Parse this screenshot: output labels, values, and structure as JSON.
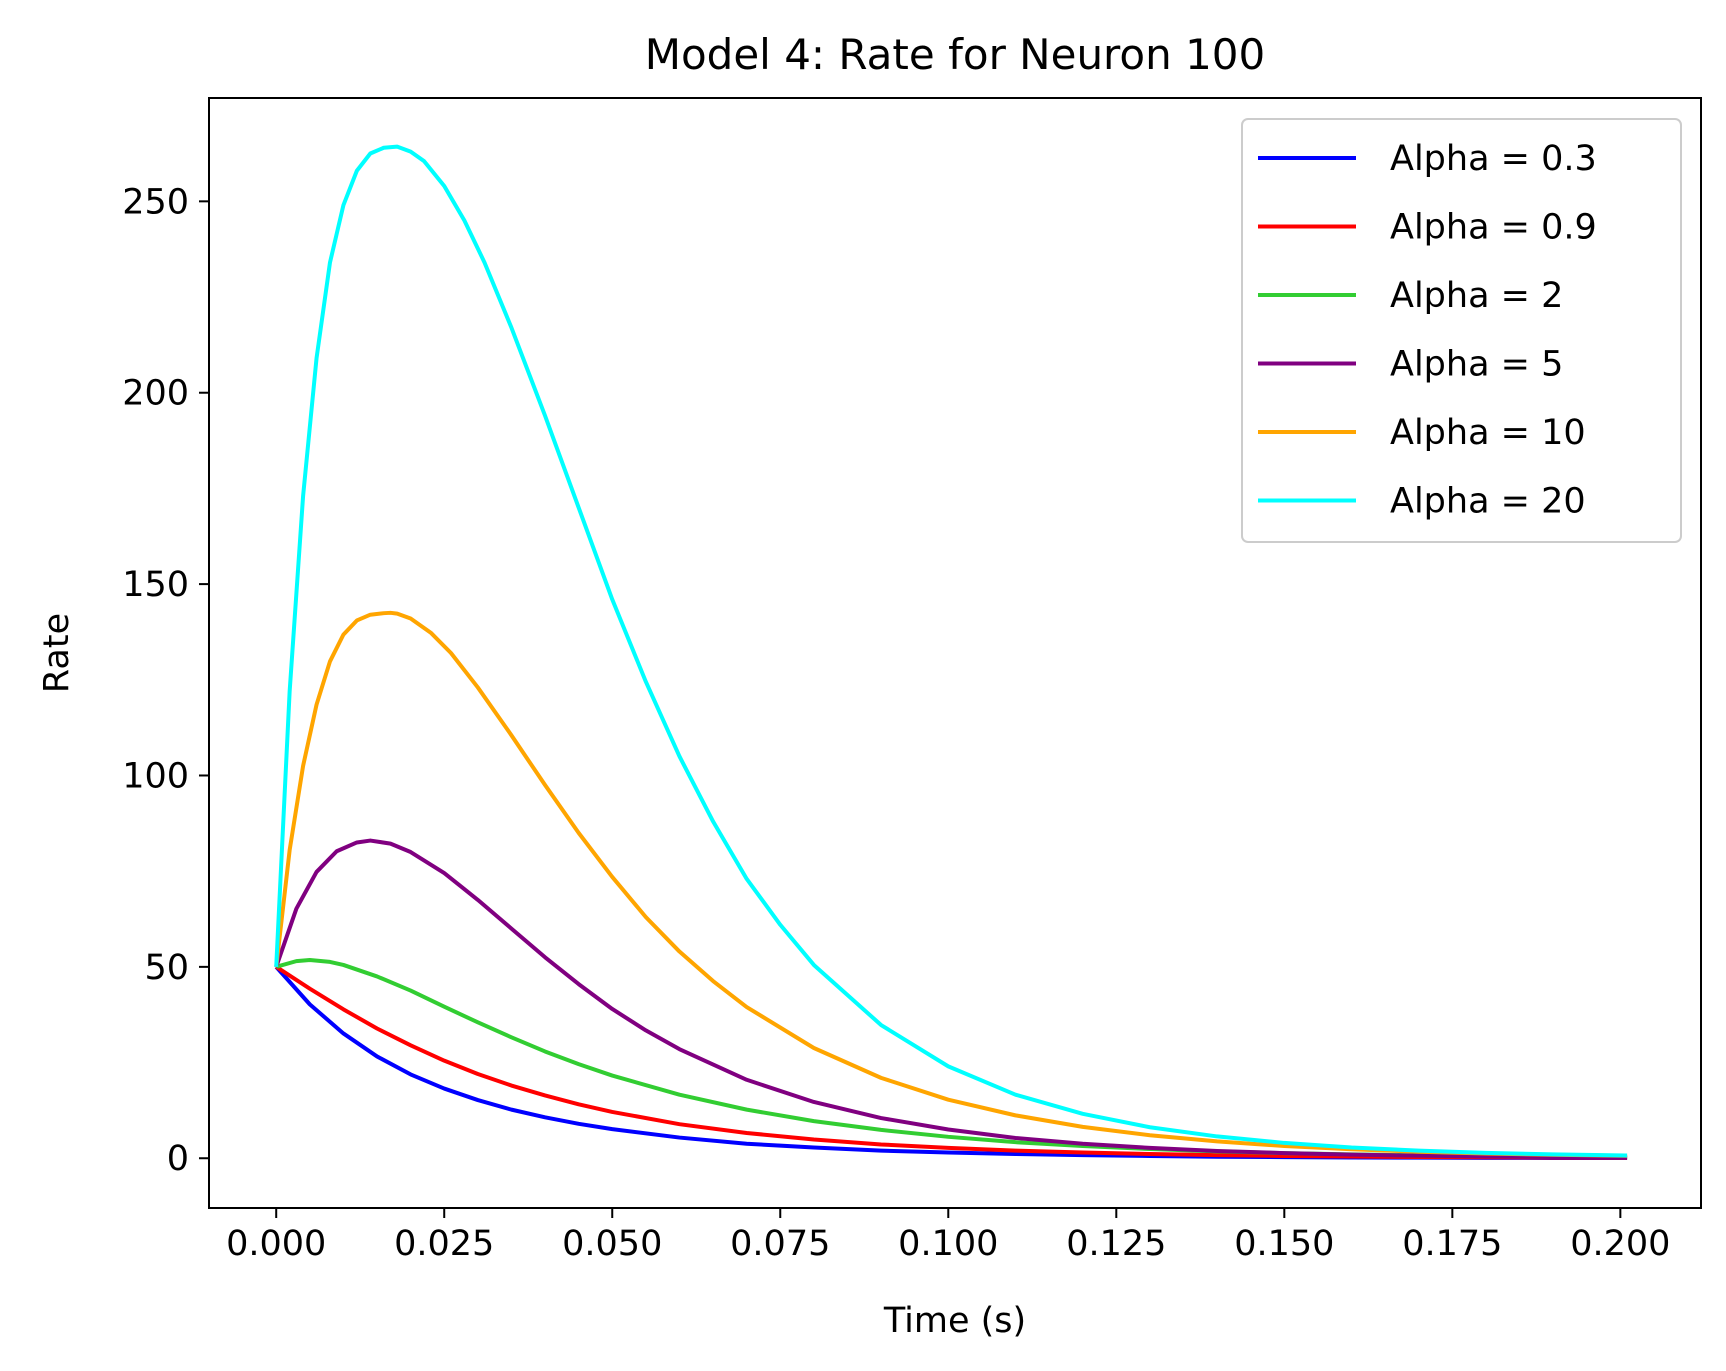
{
  "chart_data": {
    "type": "line",
    "title": "Model 4: Rate for Neuron 100",
    "xlabel": "Time (s)",
    "ylabel": "Rate",
    "xlim": [
      -0.01,
      0.212
    ],
    "ylim": [
      -13,
      277
    ],
    "xticks": [
      0.0,
      0.025,
      0.05,
      0.075,
      0.1,
      0.125,
      0.15,
      0.175,
      0.2
    ],
    "xtick_labels": [
      "0.000",
      "0.025",
      "0.050",
      "0.075",
      "0.100",
      "0.125",
      "0.150",
      "0.175",
      "0.200"
    ],
    "yticks": [
      0,
      50,
      100,
      150,
      200,
      250
    ],
    "ytick_labels": [
      "0",
      "50",
      "100",
      "150",
      "200",
      "250"
    ],
    "grid": false,
    "legend_position": "top-right",
    "series": [
      {
        "name": "Alpha = 0.3",
        "color": "#0000ff",
        "x": [
          0.0,
          0.005,
          0.01,
          0.015,
          0.02,
          0.025,
          0.03,
          0.035,
          0.04,
          0.045,
          0.05,
          0.06,
          0.07,
          0.08,
          0.09,
          0.1,
          0.11,
          0.12,
          0.13,
          0.14,
          0.15,
          0.16,
          0.17,
          0.18,
          0.19,
          0.201
        ],
        "y": [
          50,
          40.2,
          32.6,
          26.6,
          21.9,
          18.2,
          15.2,
          12.7,
          10.7,
          9.0,
          7.6,
          5.4,
          3.8,
          2.8,
          2.0,
          1.5,
          1.1,
          0.8,
          0.6,
          0.4,
          0.3,
          0.2,
          0.15,
          0.1,
          0.08,
          0.05
        ]
      },
      {
        "name": "Alpha = 0.9",
        "color": "#ff0000",
        "x": [
          0.0,
          0.005,
          0.01,
          0.015,
          0.02,
          0.025,
          0.03,
          0.035,
          0.04,
          0.045,
          0.05,
          0.06,
          0.07,
          0.08,
          0.09,
          0.1,
          0.11,
          0.12,
          0.13,
          0.14,
          0.15,
          0.16,
          0.17,
          0.18,
          0.19,
          0.201
        ],
        "y": [
          50,
          44.3,
          38.9,
          33.9,
          29.5,
          25.5,
          22.0,
          19.0,
          16.4,
          14.1,
          12.1,
          8.9,
          6.6,
          4.9,
          3.6,
          2.7,
          2.0,
          1.5,
          1.1,
          0.8,
          0.6,
          0.45,
          0.33,
          0.25,
          0.18,
          0.12
        ]
      },
      {
        "name": "Alpha = 2",
        "color": "#32cd32",
        "x": [
          0.0,
          0.003,
          0.005,
          0.008,
          0.01,
          0.015,
          0.02,
          0.025,
          0.03,
          0.035,
          0.04,
          0.045,
          0.05,
          0.06,
          0.07,
          0.08,
          0.09,
          0.1,
          0.11,
          0.12,
          0.13,
          0.14,
          0.15,
          0.16,
          0.17,
          0.18,
          0.19,
          0.201
        ],
        "y": [
          50,
          51.5,
          51.8,
          51.3,
          50.5,
          47.5,
          43.8,
          39.6,
          35.5,
          31.6,
          27.9,
          24.6,
          21.6,
          16.6,
          12.7,
          9.7,
          7.4,
          5.6,
          4.2,
          3.2,
          2.4,
          1.8,
          1.35,
          1.0,
          0.75,
          0.55,
          0.4,
          0.3
        ]
      },
      {
        "name": "Alpha = 5",
        "color": "#800080",
        "x": [
          0.0,
          0.003,
          0.006,
          0.009,
          0.012,
          0.014,
          0.017,
          0.02,
          0.025,
          0.03,
          0.035,
          0.04,
          0.045,
          0.05,
          0.055,
          0.06,
          0.07,
          0.08,
          0.09,
          0.1,
          0.11,
          0.12,
          0.13,
          0.14,
          0.15,
          0.16,
          0.17,
          0.18,
          0.19,
          0.201
        ],
        "y": [
          50,
          65.2,
          74.8,
          80.2,
          82.5,
          83.0,
          82.2,
          80.0,
          74.5,
          67.5,
          60.0,
          52.5,
          45.5,
          39.0,
          33.4,
          28.5,
          20.5,
          14.7,
          10.5,
          7.5,
          5.3,
          3.8,
          2.7,
          1.9,
          1.35,
          0.95,
          0.67,
          0.47,
          0.33,
          0.23
        ]
      },
      {
        "name": "Alpha = 10",
        "color": "#ffa500",
        "x": [
          0.0,
          0.002,
          0.004,
          0.006,
          0.008,
          0.01,
          0.012,
          0.014,
          0.016,
          0.017,
          0.018,
          0.02,
          0.023,
          0.026,
          0.03,
          0.035,
          0.04,
          0.045,
          0.05,
          0.055,
          0.06,
          0.065,
          0.07,
          0.08,
          0.09,
          0.1,
          0.11,
          0.12,
          0.13,
          0.14,
          0.15,
          0.16,
          0.17,
          0.18,
          0.19,
          0.201
        ],
        "y": [
          50,
          80.5,
          102.5,
          118.5,
          129.8,
          136.8,
          140.5,
          142.0,
          142.4,
          142.5,
          142.3,
          141.0,
          137.3,
          132.0,
          123.0,
          110.5,
          97.5,
          85.0,
          73.5,
          63.0,
          54.0,
          46.3,
          39.5,
          28.8,
          21.0,
          15.3,
          11.2,
          8.2,
          6.0,
          4.4,
          3.2,
          2.35,
          1.7,
          1.25,
          0.9,
          0.65
        ]
      },
      {
        "name": "Alpha = 20",
        "color": "#00ffff",
        "x": [
          0.0,
          0.002,
          0.004,
          0.006,
          0.008,
          0.01,
          0.012,
          0.014,
          0.016,
          0.018,
          0.02,
          0.022,
          0.025,
          0.028,
          0.031,
          0.035,
          0.04,
          0.045,
          0.05,
          0.055,
          0.06,
          0.065,
          0.07,
          0.075,
          0.08,
          0.09,
          0.1,
          0.11,
          0.12,
          0.13,
          0.14,
          0.15,
          0.16,
          0.17,
          0.18,
          0.19,
          0.201
        ],
        "y": [
          50,
          122,
          173,
          209,
          234,
          249,
          258,
          262.5,
          264.0,
          264.3,
          263.0,
          260.5,
          254,
          245,
          234,
          217,
          194,
          170,
          146,
          124.5,
          105,
          88,
          73,
          61,
          50.5,
          34.8,
          24.0,
          16.6,
          11.6,
          8.1,
          5.7,
          4.0,
          2.8,
          2.0,
          1.4,
          1.0,
          0.7
        ]
      }
    ]
  }
}
